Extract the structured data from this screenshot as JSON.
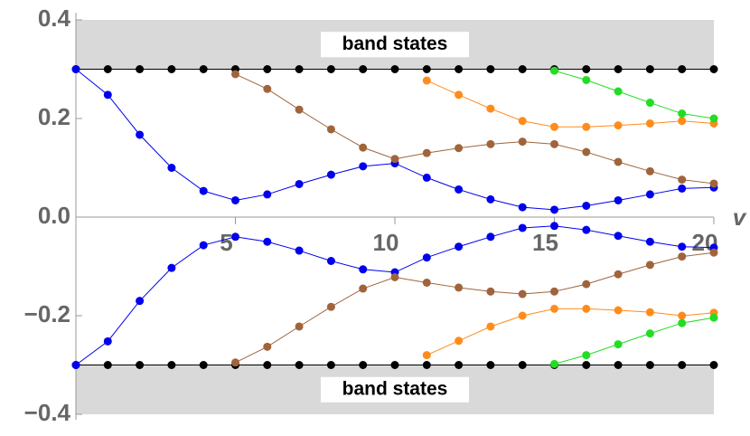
{
  "chart_data": {
    "type": "line",
    "x_label": "v",
    "annotations": [
      "band states",
      "band states"
    ],
    "band_color": "#d9d9d9",
    "band_ranges": [
      [
        0.3,
        0.4
      ],
      [
        -0.4,
        -0.3
      ]
    ],
    "x": [
      0,
      1,
      2,
      3,
      4,
      5,
      6,
      7,
      8,
      9,
      10,
      11,
      12,
      13,
      14,
      15,
      16,
      17,
      18,
      19,
      20
    ],
    "xlim": [
      0,
      20
    ],
    "xticks": [
      5,
      10,
      15,
      20
    ],
    "ylim": [
      -0.4,
      0.4
    ],
    "yticks": [
      {
        "value": -0.4,
        "label": "−0.4"
      },
      {
        "value": -0.2,
        "label": "−0.2"
      },
      {
        "value": 0,
        "label": "0.0"
      },
      0.2,
      0.4
    ],
    "series": [
      {
        "color": "#000000",
        "values": [
          0.3,
          0.3,
          0.3,
          0.3,
          0.3,
          0.3,
          0.3,
          0.3,
          0.3,
          0.3,
          0.3,
          0.3,
          0.3,
          0.3,
          0.3,
          0.3,
          0.3,
          0.3,
          0.3,
          0.3,
          0.3
        ]
      },
      {
        "color": "#000000",
        "values": [
          -0.3,
          -0.3,
          -0.3,
          -0.3,
          -0.3,
          -0.3,
          -0.3,
          -0.3,
          -0.3,
          -0.3,
          -0.3,
          -0.3,
          -0.3,
          -0.3,
          -0.3,
          -0.3,
          -0.3,
          -0.3,
          -0.3,
          -0.3,
          -0.3
        ]
      },
      {
        "color": "#0000ee",
        "values": [
          0.3,
          0.248,
          0.167,
          0.1,
          0.053,
          0.034,
          0.046,
          0.067,
          0.086,
          0.103,
          0.109,
          0.08,
          0.056,
          0.036,
          0.02,
          0.015,
          0.023,
          0.034,
          0.046,
          0.058,
          0.06
        ]
      },
      {
        "color": "#0000ee",
        "values": [
          -0.3,
          -0.252,
          -0.17,
          -0.103,
          -0.057,
          -0.04,
          -0.05,
          -0.068,
          -0.089,
          -0.106,
          -0.112,
          -0.082,
          -0.06,
          -0.04,
          -0.022,
          -0.018,
          -0.026,
          -0.038,
          -0.05,
          -0.06,
          -0.062
        ]
      },
      {
        "color": "#a0643c",
        "values": [
          null,
          null,
          null,
          null,
          null,
          0.29,
          0.26,
          0.218,
          0.178,
          0.141,
          0.118,
          0.13,
          0.14,
          0.148,
          0.153,
          0.148,
          0.132,
          0.112,
          0.093,
          0.076,
          0.068
        ]
      },
      {
        "color": "#a0643c",
        "values": [
          null,
          null,
          null,
          null,
          null,
          -0.295,
          -0.263,
          -0.222,
          -0.182,
          -0.145,
          -0.122,
          -0.133,
          -0.143,
          -0.151,
          -0.156,
          -0.151,
          -0.136,
          -0.116,
          -0.097,
          -0.08,
          -0.072
        ]
      },
      {
        "color": "#ff8c1a",
        "values": [
          null,
          null,
          null,
          null,
          null,
          null,
          null,
          null,
          null,
          null,
          null,
          0.277,
          0.248,
          0.22,
          0.195,
          0.183,
          0.183,
          0.186,
          0.19,
          0.195,
          0.19
        ]
      },
      {
        "color": "#ff8c1a",
        "values": [
          null,
          null,
          null,
          null,
          null,
          null,
          null,
          null,
          null,
          null,
          null,
          -0.28,
          -0.251,
          -0.222,
          -0.2,
          -0.186,
          -0.186,
          -0.189,
          -0.193,
          -0.2,
          -0.194
        ]
      },
      {
        "color": "#22dd22",
        "values": [
          null,
          null,
          null,
          null,
          null,
          null,
          null,
          null,
          null,
          null,
          null,
          null,
          null,
          null,
          null,
          0.297,
          0.278,
          0.255,
          0.232,
          0.21,
          0.2
        ]
      },
      {
        "color": "#22dd22",
        "values": [
          null,
          null,
          null,
          null,
          null,
          null,
          null,
          null,
          null,
          null,
          null,
          null,
          null,
          null,
          null,
          -0.298,
          -0.28,
          -0.258,
          -0.236,
          -0.215,
          -0.204
        ]
      }
    ]
  }
}
